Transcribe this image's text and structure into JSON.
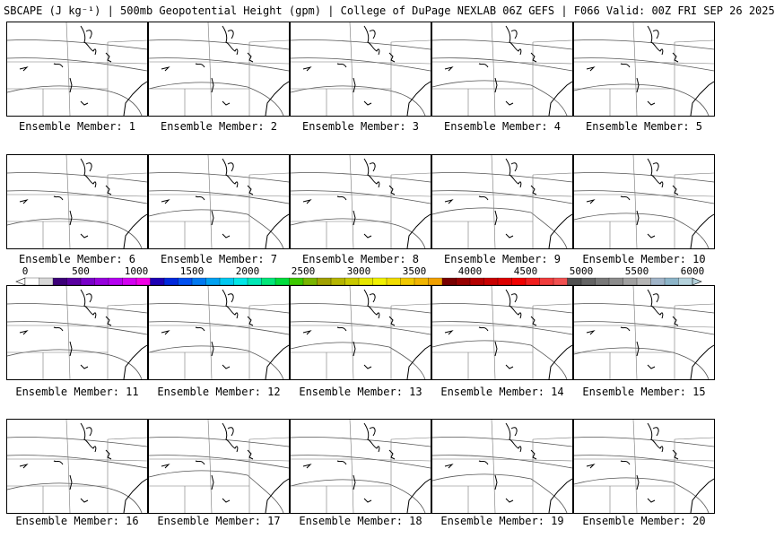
{
  "header": {
    "title": "SBCAPE (J kg⁻¹) | 500mb Geopotential Height (gpm) | College of DuPage NEXLAB 06Z GEFS | F066 Valid: 00Z FRI SEP 26 2025"
  },
  "legend": {
    "ticks": [
      "0",
      "500",
      "1000",
      "1500",
      "2000",
      "2500",
      "3000",
      "3500",
      "4000",
      "4500",
      "5000",
      "5500",
      "6000"
    ],
    "colors": [
      "#ffffff",
      "#d8d8d8",
      "#3c0078",
      "#5a00a0",
      "#7800c8",
      "#9600dc",
      "#b400f0",
      "#d200f0",
      "#f000e6",
      "#1e00b4",
      "#0028dc",
      "#0050f0",
      "#0078f0",
      "#00a0f0",
      "#00c8f0",
      "#00e6e6",
      "#00e6b4",
      "#00e678",
      "#00dc3c",
      "#3cc800",
      "#78b400",
      "#a0a000",
      "#b4b400",
      "#c8c800",
      "#e6e600",
      "#f0f000",
      "#f0dc00",
      "#f0c800",
      "#f0b400",
      "#f0a000",
      "#780000",
      "#960000",
      "#b40000",
      "#c80000",
      "#dc0000",
      "#f00000",
      "#f01e1e",
      "#f03c3c",
      "#f05050",
      "#505050",
      "#646464",
      "#787878",
      "#8c8c8c",
      "#a0a0a0",
      "#b4b4b4",
      "#a0b4c8",
      "#8cb4c8",
      "#b4d2dc"
    ]
  },
  "panels": [
    {
      "label": "Ensemble Member: 1"
    },
    {
      "label": "Ensemble Member: 2"
    },
    {
      "label": "Ensemble Member: 3"
    },
    {
      "label": "Ensemble Member: 4"
    },
    {
      "label": "Ensemble Member: 5"
    },
    {
      "label": "Ensemble Member: 6"
    },
    {
      "label": "Ensemble Member: 7"
    },
    {
      "label": "Ensemble Member: 8"
    },
    {
      "label": "Ensemble Member: 9"
    },
    {
      "label": "Ensemble Member: 10"
    },
    {
      "label": "Ensemble Member: 11"
    },
    {
      "label": "Ensemble Member: 12"
    },
    {
      "label": "Ensemble Member: 13"
    },
    {
      "label": "Ensemble Member: 14"
    },
    {
      "label": "Ensemble Member: 15"
    },
    {
      "label": "Ensemble Member: 16"
    },
    {
      "label": "Ensemble Member: 17"
    },
    {
      "label": "Ensemble Member: 18"
    },
    {
      "label": "Ensemble Member: 19"
    },
    {
      "label": "Ensemble Member: 20"
    }
  ]
}
